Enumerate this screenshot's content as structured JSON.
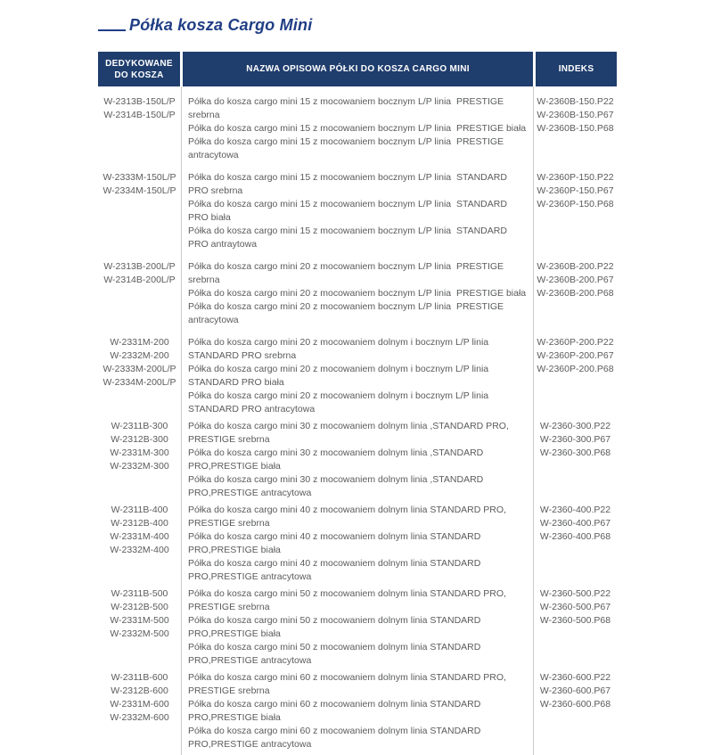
{
  "page_title": "Półka kosza Cargo Mini",
  "colors": {
    "header_bg": "#1F3D6D",
    "title_text": "#203E85",
    "body_text": "#5A5B5D",
    "divider": "#C9CACB"
  },
  "table": {
    "headers": {
      "dedicated": "DEDYKOWANE DO KOSZA",
      "description": "NAZWA OPISOWA PÓŁKI DO KOSZA CARGO MINI",
      "index": "INDEKS"
    },
    "groups": [
      {
        "models": [
          "W-2313B-150L/P",
          "W-2314B-150L/P"
        ],
        "descriptions": [
          "Półka do kosza cargo mini 15 z mocowaniem bocznym L/P linia  PRESTIGE srebrna",
          "Półka do kosza cargo mini 15 z mocowaniem bocznym L/P linia  PRESTIGE biała",
          "Półka do kosza cargo mini 15 z mocowaniem bocznym L/P linia  PRESTIGE antracytowa"
        ],
        "indexes": [
          "W-2360B-150.P22",
          "W-2360B-150.P67",
          "W-2360B-150.P68"
        ]
      },
      {
        "models": [
          "W-2333M-150L/P",
          "W-2334M-150L/P"
        ],
        "descriptions": [
          "Półka do kosza cargo mini 15 z mocowaniem bocznym L/P linia  STANDARD PRO srebrna",
          "Półka do kosza cargo mini 15 z mocowaniem bocznym L/P linia  STANDARD PRO biała",
          "Półka do kosza cargo mini 15 z mocowaniem bocznym L/P linia  STANDARD PRO antraytowa"
        ],
        "indexes": [
          "W-2360P-150.P22",
          "W-2360P-150.P67",
          "W-2360P-150.P68"
        ]
      },
      {
        "models": [
          "W-2313B-200L/P",
          "W-2314B-200L/P"
        ],
        "descriptions": [
          "Półka do kosza cargo mini 20 z mocowaniem bocznym L/P linia  PRESTIGE srebrna",
          "Półka do kosza cargo mini 20 z mocowaniem bocznym L/P linia  PRESTIGE biała",
          "Półka do kosza cargo mini 20 z mocowaniem bocznym L/P linia  PRESTIGE antracytowa"
        ],
        "indexes": [
          "W-2360B-200.P22",
          "W-2360B-200.P67",
          "W-2360B-200.P68"
        ]
      },
      {
        "models": [
          "W-2331M-200",
          "W-2332M-200",
          "W-2333M-200L/P",
          "W-2334M-200L/P"
        ],
        "descriptions": [
          "Półka do kosza cargo mini 20 z mocowaniem dolnym i bocznym L/P linia STANDARD PRO srebrna",
          "Półka do kosza cargo mini 20 z mocowaniem dolnym i bocznym L/P linia STANDARD PRO biała",
          "Półka do kosza cargo mini 20 z mocowaniem dolnym i bocznym L/P linia STANDARD PRO antracytowa"
        ],
        "indexes": [
          "W-2360P-200.P22",
          "W-2360P-200.P67",
          "W-2360P-200.P68"
        ]
      },
      {
        "models": [
          "W-2311B-300",
          "W-2312B-300",
          "W-2331M-300",
          "W-2332M-300"
        ],
        "descriptions": [
          "Półka do kosza cargo mini 30 z mocowaniem dolnym linia ,STANDARD PRO, PRESTIGE srebrna",
          "Półka do kosza cargo mini 30 z mocowaniem dolnym linia ,STANDARD PRO,PRESTIGE biała",
          "Półka do kosza cargo mini 30 z mocowaniem dolnym linia ,STANDARD PRO,PRESTIGE antracytowa"
        ],
        "indexes": [
          "W-2360-300.P22",
          "W-2360-300.P67",
          "W-2360-300.P68"
        ]
      },
      {
        "models": [
          "W-2311B-400",
          "W-2312B-400",
          "W-2331M-400",
          "W-2332M-400"
        ],
        "descriptions": [
          "Półka do kosza cargo mini 40 z mocowaniem dolnym linia STANDARD PRO, PRESTIGE srebrna",
          "Półka do kosza cargo mini 40 z mocowaniem dolnym linia STANDARD PRO,PRESTIGE biała",
          "Półka do kosza cargo mini 40 z mocowaniem dolnym linia STANDARD PRO,PRESTIGE antracytowa"
        ],
        "indexes": [
          "W-2360-400.P22",
          "W-2360-400.P67",
          "W-2360-400.P68"
        ]
      },
      {
        "models": [
          "W-2311B-500",
          "W-2312B-500",
          "W-2331M-500",
          "W-2332M-500"
        ],
        "descriptions": [
          "Półka do kosza cargo mini 50 z mocowaniem dolnym linia STANDARD PRO, PRESTIGE srebrna",
          "Półka do kosza cargo mini 50 z mocowaniem dolnym linia STANDARD PRO,PRESTIGE biała",
          "Półka do kosza cargo mini 50 z mocowaniem dolnym linia STANDARD PRO,PRESTIGE antracytowa"
        ],
        "indexes": [
          "W-2360-500.P22",
          "W-2360-500.P67",
          "W-2360-500.P68"
        ]
      },
      {
        "models": [
          "W-2311B-600",
          "W-2312B-600",
          "W-2331M-600",
          "W-2332M-600"
        ],
        "descriptions": [
          "Półka do kosza cargo mini 60 z mocowaniem dolnym linia STANDARD PRO, PRESTIGE srebrna",
          "Półka do kosza cargo mini 60 z mocowaniem dolnym linia STANDARD PRO,PRESTIGE biała",
          "Półka do kosza cargo mini 60 z mocowaniem dolnym linia STANDARD PRO,PRESTIGE antracytowa"
        ],
        "indexes": [
          "W-2360-600.P22",
          "W-2360-600.P67",
          "W-2360-600.P68"
        ]
      }
    ]
  }
}
